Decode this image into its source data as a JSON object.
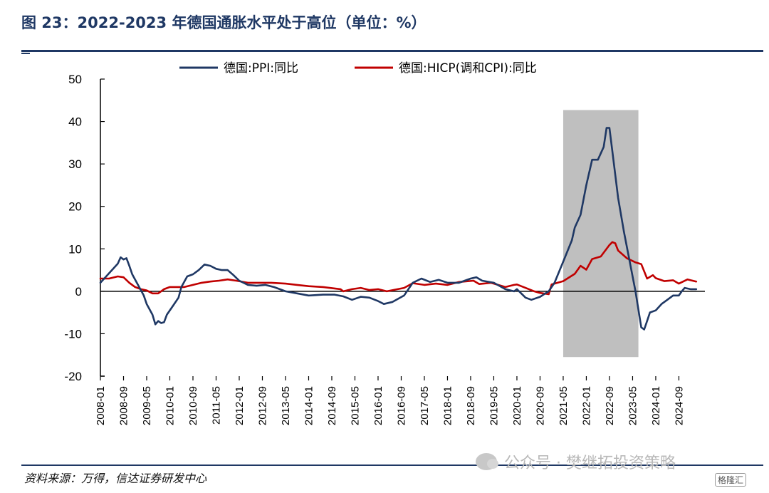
{
  "header": {
    "title": "图 23：2022-2023 年德国通胀水平处于高位（单位：%）"
  },
  "footer": {
    "source": "资料来源：万得，信达证券研发中心"
  },
  "watermark": {
    "text": "公众号 · 樊继拓投资策略",
    "badge": "格隆汇"
  },
  "colors": {
    "title": "#1f3864",
    "ppi": "#1f3864",
    "hicp": "#c00000",
    "shade": "#bfbfbf"
  },
  "chart_data": {
    "type": "line",
    "title": "",
    "xlabel": "",
    "ylabel": "",
    "ylim": [
      -20,
      50
    ],
    "yticks": [
      50,
      40,
      30,
      20,
      10,
      0,
      -10,
      -20
    ],
    "xlim": [
      "2008-01",
      "2025-06"
    ],
    "xticks": [
      "2008-01",
      "2008-09",
      "2009-05",
      "2010-01",
      "2010-09",
      "2011-05",
      "2012-01",
      "2012-09",
      "2013-05",
      "2014-01",
      "2014-09",
      "2015-05",
      "2016-01",
      "2016-09",
      "2017-05",
      "2018-01",
      "2018-09",
      "2019-05",
      "2020-01",
      "2020-09",
      "2021-05",
      "2022-01",
      "2022-09",
      "2023-05",
      "2024-01",
      "2024-09"
    ],
    "legend": "top",
    "grid": false,
    "shaded_region": {
      "from": "2021-05",
      "to": "2023-07",
      "ymin": -15.5,
      "ymax": 42.7
    },
    "series": [
      {
        "name": "德国:PPI:同比",
        "color": "#1f3864",
        "points": [
          [
            "2008-01",
            2.0
          ],
          [
            "2008-03",
            3.5
          ],
          [
            "2008-05",
            5.0
          ],
          [
            "2008-07",
            6.5
          ],
          [
            "2008-08",
            8.0
          ],
          [
            "2008-09",
            7.5
          ],
          [
            "2008-10",
            7.8
          ],
          [
            "2008-11",
            6.0
          ],
          [
            "2008-12",
            4.0
          ],
          [
            "2009-02",
            1.5
          ],
          [
            "2009-04",
            -1.0
          ],
          [
            "2009-05",
            -3.0
          ],
          [
            "2009-07",
            -5.5
          ],
          [
            "2009-08",
            -7.8
          ],
          [
            "2009-09",
            -7.0
          ],
          [
            "2009-10",
            -7.5
          ],
          [
            "2009-11",
            -7.3
          ],
          [
            "2009-12",
            -5.5
          ],
          [
            "2010-02",
            -3.5
          ],
          [
            "2010-04",
            -1.5
          ],
          [
            "2010-05",
            1.0
          ],
          [
            "2010-07",
            3.5
          ],
          [
            "2010-09",
            4.0
          ],
          [
            "2010-11",
            5.0
          ],
          [
            "2011-01",
            6.3
          ],
          [
            "2011-03",
            6.0
          ],
          [
            "2011-05",
            5.3
          ],
          [
            "2011-07",
            5.0
          ],
          [
            "2011-09",
            5.0
          ],
          [
            "2011-11",
            3.8
          ],
          [
            "2012-01",
            2.5
          ],
          [
            "2012-04",
            1.5
          ],
          [
            "2012-07",
            1.3
          ],
          [
            "2012-10",
            1.5
          ],
          [
            "2013-01",
            1.0
          ],
          [
            "2013-05",
            0.0
          ],
          [
            "2013-09",
            -0.5
          ],
          [
            "2014-01",
            -1.0
          ],
          [
            "2014-06",
            -0.8
          ],
          [
            "2014-10",
            -0.8
          ],
          [
            "2015-01",
            -1.2
          ],
          [
            "2015-04",
            -2.0
          ],
          [
            "2015-07",
            -1.3
          ],
          [
            "2015-10",
            -1.5
          ],
          [
            "2016-01",
            -2.3
          ],
          [
            "2016-03",
            -3.0
          ],
          [
            "2016-06",
            -2.5
          ],
          [
            "2016-10",
            -1.0
          ],
          [
            "2017-01",
            2.0
          ],
          [
            "2017-04",
            3.0
          ],
          [
            "2017-07",
            2.2
          ],
          [
            "2017-10",
            2.7
          ],
          [
            "2018-01",
            2.0
          ],
          [
            "2018-05",
            2.0
          ],
          [
            "2018-09",
            3.0
          ],
          [
            "2018-11",
            3.3
          ],
          [
            "2019-01",
            2.5
          ],
          [
            "2019-05",
            2.0
          ],
          [
            "2019-09",
            0.5
          ],
          [
            "2019-12",
            0.0
          ],
          [
            "2020-01",
            0.5
          ],
          [
            "2020-04",
            -1.5
          ],
          [
            "2020-06",
            -2.0
          ],
          [
            "2020-09",
            -1.3
          ],
          [
            "2020-12",
            0.0
          ],
          [
            "2021-02",
            2.0
          ],
          [
            "2021-05",
            7.0
          ],
          [
            "2021-08",
            12.0
          ],
          [
            "2021-09",
            15.0
          ],
          [
            "2021-11",
            18.0
          ],
          [
            "2022-01",
            25.0
          ],
          [
            "2022-03",
            31.0
          ],
          [
            "2022-05",
            31.0
          ],
          [
            "2022-07",
            34.0
          ],
          [
            "2022-08",
            38.5
          ],
          [
            "2022-09",
            38.5
          ],
          [
            "2022-10",
            33.0
          ],
          [
            "2022-12",
            22.0
          ],
          [
            "2023-02",
            14.0
          ],
          [
            "2023-04",
            7.0
          ],
          [
            "2023-06",
            0.0
          ],
          [
            "2023-08",
            -8.5
          ],
          [
            "2023-09",
            -9.0
          ],
          [
            "2023-10",
            -7.0
          ],
          [
            "2023-11",
            -5.0
          ],
          [
            "2024-01",
            -4.5
          ],
          [
            "2024-03",
            -3.0
          ],
          [
            "2024-05",
            -2.0
          ],
          [
            "2024-07",
            -1.0
          ],
          [
            "2024-09",
            -1.0
          ],
          [
            "2024-10",
            0.0
          ],
          [
            "2024-11",
            0.8
          ],
          [
            "2025-01",
            0.5
          ],
          [
            "2025-03",
            0.5
          ]
        ]
      },
      {
        "name": "德国:HICP(调和CPI):同比",
        "color": "#c00000",
        "points": [
          [
            "2008-01",
            3.0
          ],
          [
            "2008-04",
            3.0
          ],
          [
            "2008-07",
            3.5
          ],
          [
            "2008-09",
            3.3
          ],
          [
            "2008-11",
            2.0
          ],
          [
            "2009-01",
            1.0
          ],
          [
            "2009-03",
            0.5
          ],
          [
            "2009-05",
            0.2
          ],
          [
            "2009-07",
            -0.5
          ],
          [
            "2009-09",
            -0.5
          ],
          [
            "2009-11",
            0.5
          ],
          [
            "2010-01",
            1.0
          ],
          [
            "2010-06",
            1.0
          ],
          [
            "2010-12",
            2.0
          ],
          [
            "2011-03",
            2.3
          ],
          [
            "2011-06",
            2.5
          ],
          [
            "2011-09",
            2.8
          ],
          [
            "2011-12",
            2.5
          ],
          [
            "2012-04",
            2.0
          ],
          [
            "2012-09",
            2.0
          ],
          [
            "2012-12",
            2.0
          ],
          [
            "2013-05",
            1.8
          ],
          [
            "2013-09",
            1.5
          ],
          [
            "2014-01",
            1.2
          ],
          [
            "2014-06",
            1.0
          ],
          [
            "2014-12",
            0.5
          ],
          [
            "2015-01",
            0.0
          ],
          [
            "2015-04",
            0.5
          ],
          [
            "2015-07",
            0.8
          ],
          [
            "2015-10",
            0.3
          ],
          [
            "2016-01",
            0.5
          ],
          [
            "2016-04",
            0.0
          ],
          [
            "2016-07",
            0.4
          ],
          [
            "2016-10",
            0.8
          ],
          [
            "2017-01",
            1.9
          ],
          [
            "2017-05",
            1.5
          ],
          [
            "2017-09",
            1.8
          ],
          [
            "2018-01",
            1.5
          ],
          [
            "2018-05",
            2.2
          ],
          [
            "2018-10",
            2.5
          ],
          [
            "2018-12",
            1.7
          ],
          [
            "2019-04",
            2.0
          ],
          [
            "2019-09",
            1.0
          ],
          [
            "2019-12",
            1.5
          ],
          [
            "2020-01",
            1.6
          ],
          [
            "2020-04",
            0.8
          ],
          [
            "2020-07",
            0.0
          ],
          [
            "2020-09",
            -0.4
          ],
          [
            "2020-12",
            -0.7
          ],
          [
            "2021-01",
            1.6
          ],
          [
            "2021-05",
            2.4
          ],
          [
            "2021-09",
            4.1
          ],
          [
            "2021-11",
            6.0
          ],
          [
            "2022-01",
            5.1
          ],
          [
            "2022-03",
            7.6
          ],
          [
            "2022-06",
            8.2
          ],
          [
            "2022-09",
            10.9
          ],
          [
            "2022-10",
            11.6
          ],
          [
            "2022-11",
            11.3
          ],
          [
            "2022-12",
            9.6
          ],
          [
            "2023-03",
            7.8
          ],
          [
            "2023-06",
            6.8
          ],
          [
            "2023-08",
            6.4
          ],
          [
            "2023-10",
            3.0
          ],
          [
            "2023-12",
            3.8
          ],
          [
            "2024-01",
            3.1
          ],
          [
            "2024-04",
            2.4
          ],
          [
            "2024-07",
            2.6
          ],
          [
            "2024-09",
            1.8
          ],
          [
            "2024-12",
            2.8
          ],
          [
            "2025-03",
            2.3
          ]
        ]
      }
    ]
  }
}
